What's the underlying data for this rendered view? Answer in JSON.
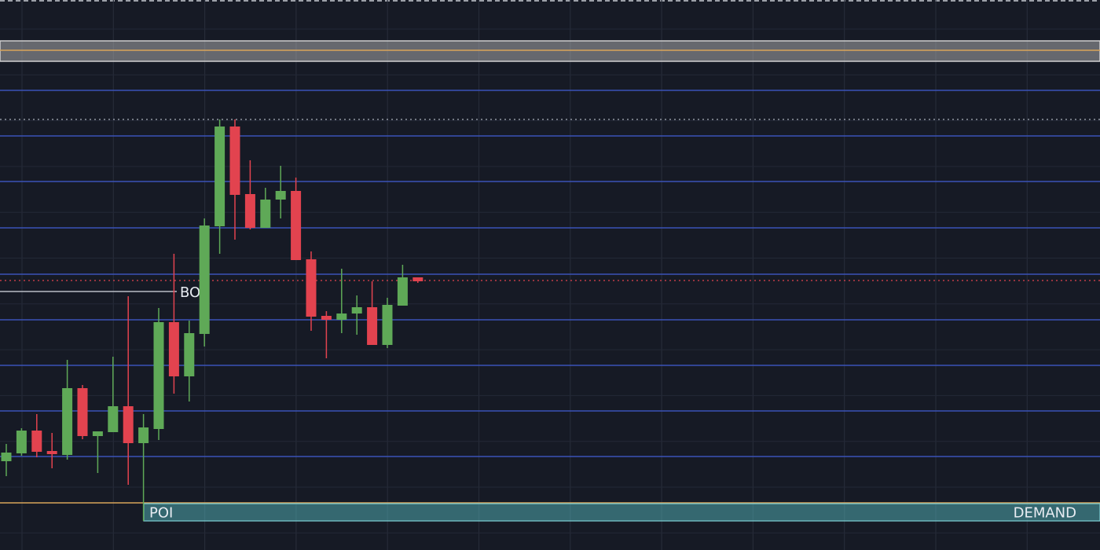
{
  "chart_data": {
    "type": "candlestick",
    "ylim": [
      0,
      700
    ],
    "up_color": "#5fa957",
    "down_color": "#e2434f",
    "level_color": "#3a52b8",
    "levels": [
      585,
      527,
      469,
      410,
      351,
      293,
      235,
      177,
      119
    ],
    "candles": [
      {
        "open": 113,
        "high": 135,
        "low": 94,
        "close": 124
      },
      {
        "open": 123,
        "high": 155,
        "low": 120,
        "close": 152
      },
      {
        "open": 152,
        "high": 173,
        "low": 118,
        "close": 125
      },
      {
        "open": 126,
        "high": 149,
        "low": 104,
        "close": 122
      },
      {
        "open": 121,
        "high": 242,
        "low": 115,
        "close": 206
      },
      {
        "open": 206,
        "high": 210,
        "low": 141,
        "close": 145
      },
      {
        "open": 145,
        "high": 151,
        "low": 98,
        "close": 151
      },
      {
        "open": 150,
        "high": 246,
        "low": 150,
        "close": 183
      },
      {
        "open": 183,
        "high": 323,
        "low": 83,
        "close": 136
      },
      {
        "open": 136,
        "high": 173,
        "low": 37,
        "close": 156
      },
      {
        "open": 154,
        "high": 308,
        "low": 140,
        "close": 290
      },
      {
        "open": 290,
        "high": 377,
        "low": 199,
        "close": 221
      },
      {
        "open": 221,
        "high": 292,
        "low": 189,
        "close": 276
      },
      {
        "open": 275,
        "high": 422,
        "low": 259,
        "close": 413
      },
      {
        "open": 412,
        "high": 548,
        "low": 377,
        "close": 539
      },
      {
        "open": 539,
        "high": 548,
        "low": 395,
        "close": 452
      },
      {
        "open": 453,
        "high": 496,
        "low": 408,
        "close": 410
      },
      {
        "open": 410,
        "high": 461,
        "low": 410,
        "close": 446
      },
      {
        "open": 446,
        "high": 489,
        "low": 422,
        "close": 457
      },
      {
        "open": 457,
        "high": 474,
        "low": 369,
        "close": 369
      },
      {
        "open": 370,
        "high": 380,
        "low": 279,
        "close": 297
      },
      {
        "open": 298,
        "high": 304,
        "low": 244,
        "close": 293
      },
      {
        "open": 293,
        "high": 358,
        "low": 276,
        "close": 301
      },
      {
        "open": 301,
        "high": 324,
        "low": 274,
        "close": 309
      },
      {
        "open": 309,
        "high": 342,
        "low": 261,
        "close": 261
      },
      {
        "open": 261,
        "high": 321,
        "low": 257,
        "close": 312
      },
      {
        "open": 311,
        "high": 363,
        "low": 311,
        "close": 347
      },
      {
        "open": 347,
        "high": 347,
        "low": 340,
        "close": 342
      }
    ],
    "price_line": 343,
    "high_line": 548,
    "bos": {
      "label": "BOS",
      "value": 329
    },
    "supply_zone": {
      "range": [
        622,
        648
      ],
      "mid": 636
    },
    "demand_zone": {
      "range": [
        37,
        60
      ],
      "left_label": "POI",
      "right_label": "DEMAND"
    }
  }
}
